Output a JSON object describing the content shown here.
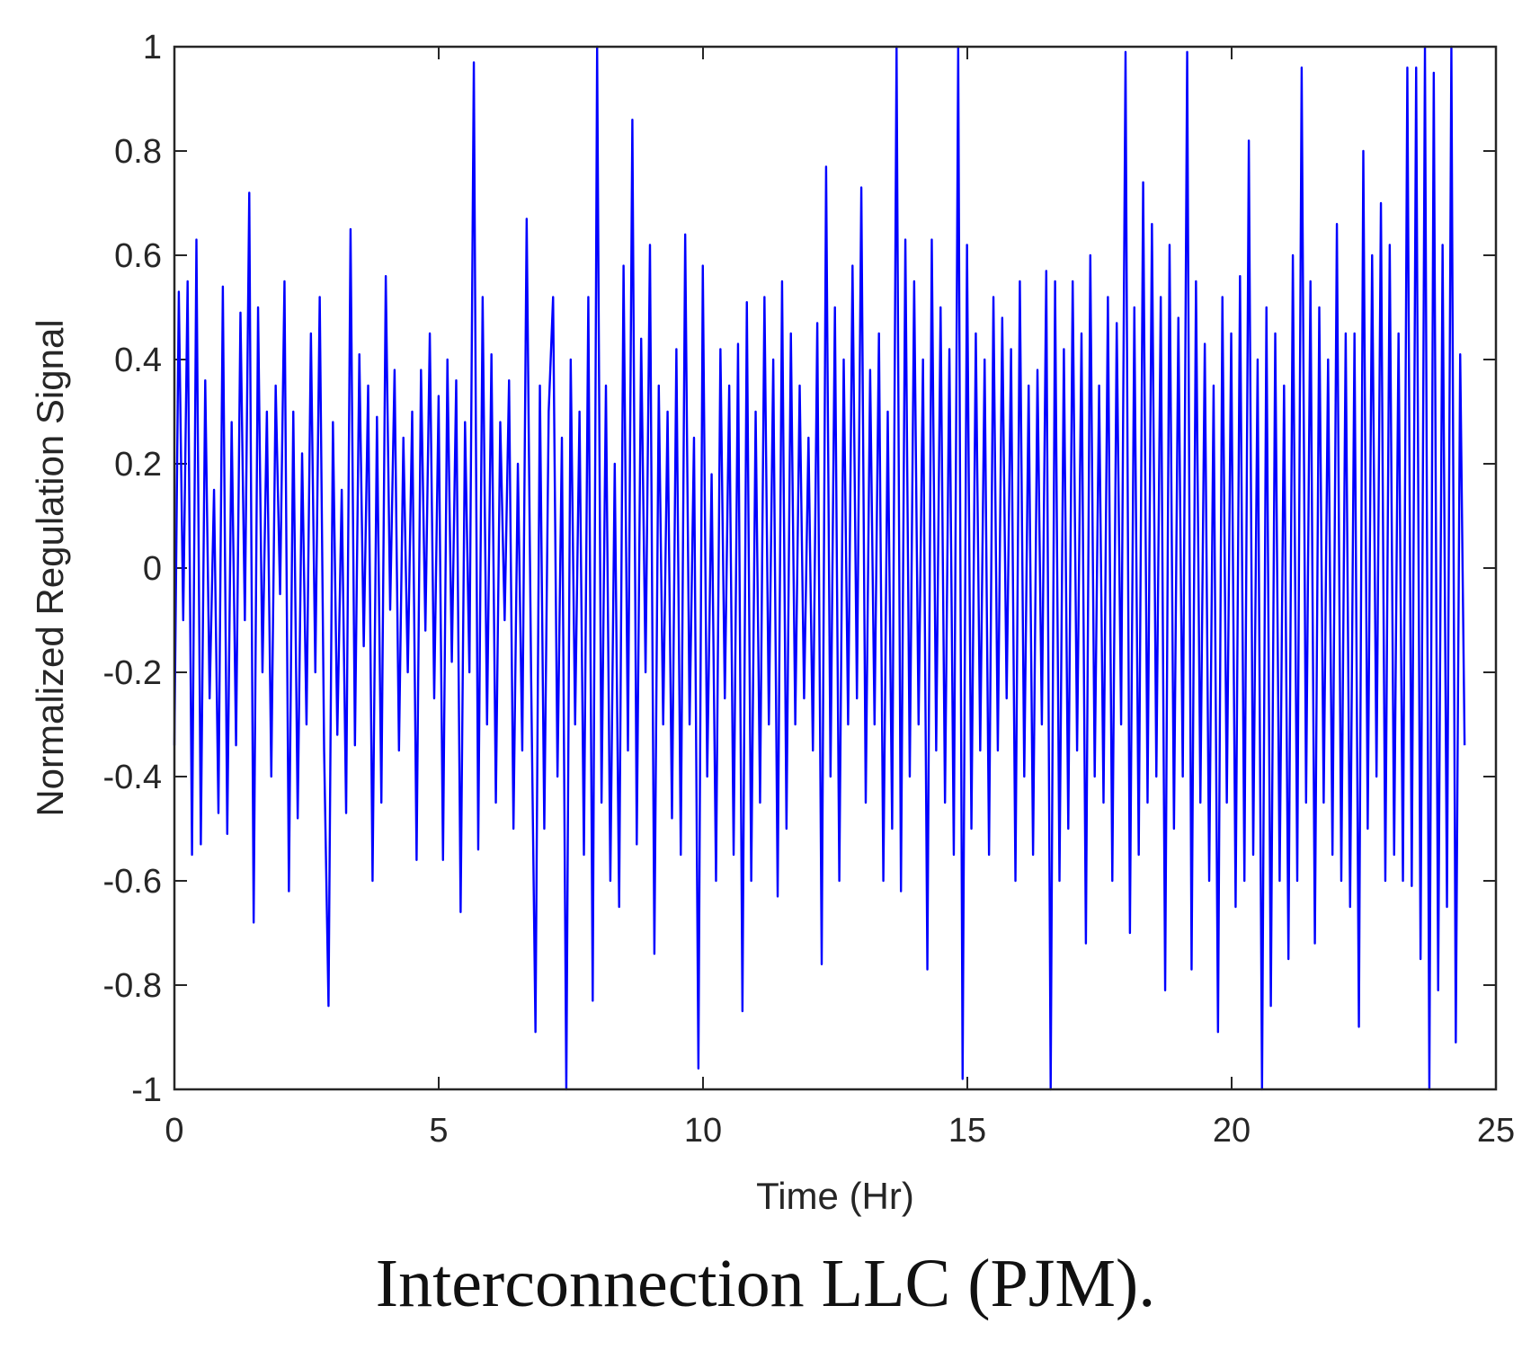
{
  "caption": "Interconnection LLC (PJM).",
  "chart_data": {
    "type": "line",
    "xlabel": "Time (Hr)",
    "ylabel": "Normalized Regulation Signal",
    "xlim": [
      0,
      25
    ],
    "ylim": [
      -1,
      1
    ],
    "xticks": [
      "0",
      "5",
      "10",
      "15",
      "20",
      "25"
    ],
    "yticks": [
      "-1",
      "-0.8",
      "-0.6",
      "-0.4",
      "-0.2",
      "0",
      "0.2",
      "0.4",
      "0.6",
      "0.8",
      "1"
    ],
    "grid": false,
    "series_color": "#0000ff",
    "series": [
      {
        "x_start": 0,
        "x_step": 0.0833,
        "values": [
          -0.34,
          0.53,
          -0.1,
          0.55,
          -0.55,
          0.63,
          -0.53,
          0.36,
          -0.25,
          0.15,
          -0.47,
          0.54,
          -0.51,
          0.28,
          -0.34,
          0.49,
          -0.1,
          0.72,
          -0.68,
          0.5,
          -0.2,
          0.3,
          -0.4,
          0.35,
          -0.05,
          0.55,
          -0.62,
          0.3,
          -0.48,
          0.22,
          -0.3,
          0.45,
          -0.2,
          0.52,
          -0.35,
          -0.84,
          0.28,
          -0.32,
          0.15,
          -0.47,
          0.65,
          -0.34,
          0.41,
          -0.15,
          0.35,
          -0.6,
          0.29,
          -0.45,
          0.56,
          -0.08,
          0.38,
          -0.35,
          0.25,
          -0.2,
          0.3,
          -0.56,
          0.38,
          -0.12,
          0.45,
          -0.25,
          0.33,
          -0.56,
          0.4,
          -0.18,
          0.36,
          -0.66,
          0.28,
          -0.2,
          0.97,
          -0.54,
          0.52,
          -0.3,
          0.41,
          -0.45,
          0.28,
          -0.1,
          0.36,
          -0.5,
          0.2,
          -0.35,
          0.67,
          -0.2,
          -0.89,
          0.35,
          -0.5,
          0.3,
          0.52,
          -0.4,
          0.25,
          -1.0,
          0.4,
          -0.3,
          0.3,
          -0.55,
          0.52,
          -0.83,
          1.0,
          -0.45,
          0.35,
          -0.6,
          0.2,
          -0.65,
          0.58,
          -0.35,
          0.86,
          -0.53,
          0.44,
          -0.2,
          0.62,
          -0.74,
          0.35,
          -0.3,
          0.3,
          -0.48,
          0.42,
          -0.55,
          0.64,
          -0.3,
          0.25,
          -0.96,
          0.58,
          -0.4,
          0.18,
          -0.6,
          0.42,
          -0.25,
          0.35,
          -0.55,
          0.43,
          -0.85,
          0.51,
          -0.6,
          0.3,
          -0.45,
          0.52,
          -0.3,
          0.4,
          -0.63,
          0.55,
          -0.5,
          0.45,
          -0.3,
          0.35,
          -0.25,
          0.25,
          -0.35,
          0.47,
          -0.76,
          0.77,
          -0.4,
          0.5,
          -0.6,
          0.4,
          -0.3,
          0.58,
          -0.25,
          0.73,
          -0.45,
          0.38,
          -0.3,
          0.45,
          -0.6,
          0.3,
          -0.5,
          1.0,
          -0.62,
          0.63,
          -0.4,
          0.55,
          -0.3,
          0.4,
          -0.77,
          0.63,
          -0.35,
          0.5,
          -0.45,
          0.42,
          -0.55,
          1.0,
          -0.98,
          0.62,
          -0.5,
          0.45,
          -0.35,
          0.4,
          -0.55,
          0.52,
          -0.35,
          0.48,
          -0.25,
          0.42,
          -0.6,
          0.55,
          -0.4,
          0.35,
          -0.55,
          0.38,
          -0.3,
          0.57,
          -1.0,
          0.55,
          -0.6,
          0.42,
          -0.5,
          0.55,
          -0.35,
          0.45,
          -0.72,
          0.6,
          -0.4,
          0.35,
          -0.45,
          0.52,
          -0.6,
          0.47,
          -0.3,
          0.99,
          -0.7,
          0.5,
          -0.55,
          0.74,
          -0.45,
          0.66,
          -0.4,
          0.52,
          -0.81,
          0.62,
          -0.5,
          0.48,
          -0.4,
          0.99,
          -0.77,
          0.55,
          -0.45,
          0.43,
          -0.6,
          0.35,
          -0.89,
          0.52,
          -0.45,
          0.45,
          -0.65,
          0.56,
          -0.6,
          0.82,
          -0.55,
          0.4,
          -1.0,
          0.5,
          -0.84,
          0.45,
          -0.6,
          0.35,
          -0.75,
          0.6,
          -0.6,
          0.96,
          -0.45,
          0.55,
          -0.72,
          0.5,
          -0.45,
          0.4,
          -0.55,
          0.66,
          -0.6,
          0.45,
          -0.65,
          0.45,
          -0.88,
          0.8,
          -0.5,
          0.6,
          -0.4,
          0.7,
          -0.6,
          0.62,
          -0.55,
          0.45,
          -0.6,
          0.96,
          -0.61,
          0.96,
          -0.75,
          1.0,
          -1.0,
          0.95,
          -0.81,
          0.62,
          -0.65,
          1.0,
          -0.91,
          0.41,
          -0.34
        ]
      }
    ]
  }
}
